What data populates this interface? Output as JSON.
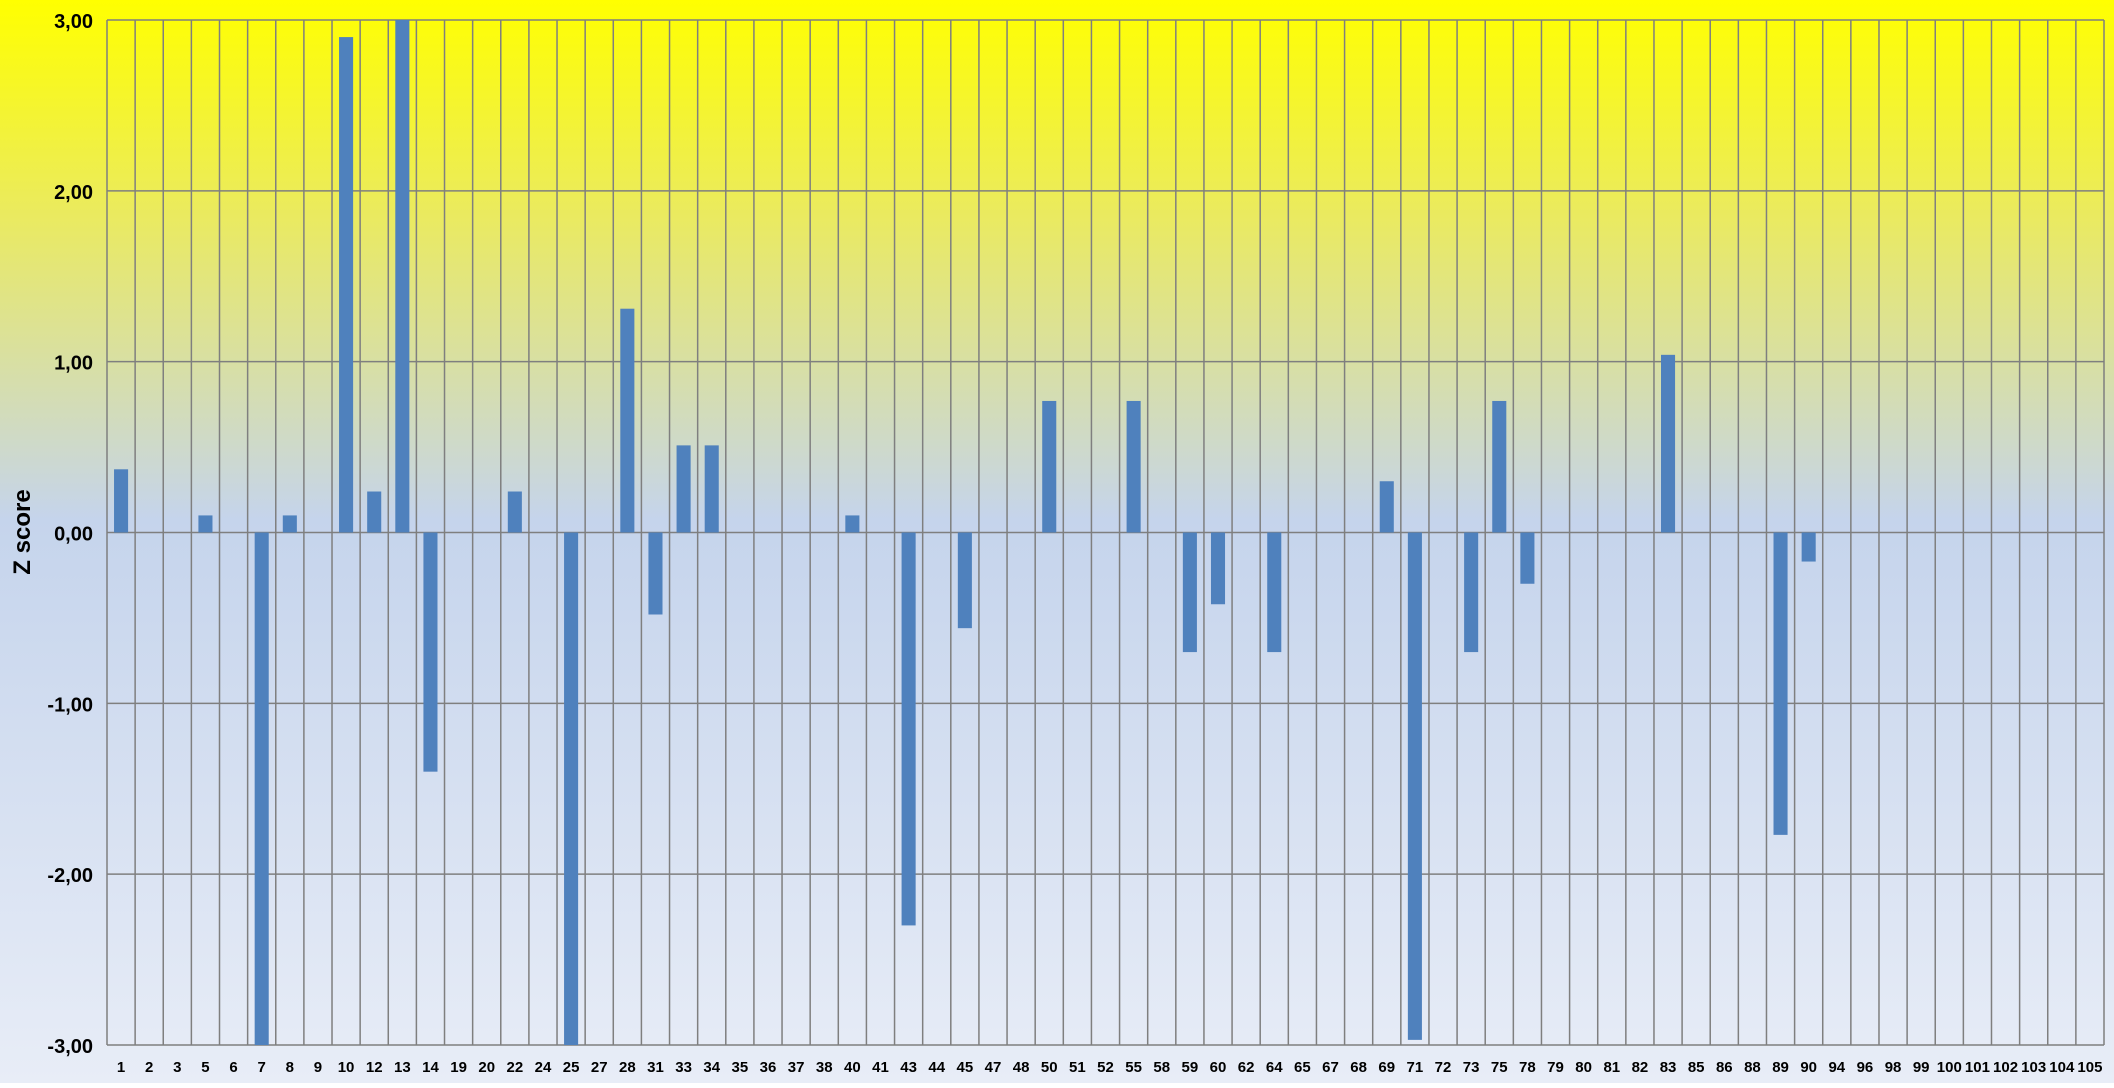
{
  "chart_data": {
    "type": "bar",
    "title": "",
    "xlabel": "",
    "ylabel": "Z score",
    "ylim": [
      -3,
      3
    ],
    "yticks": [
      3,
      2,
      1,
      0,
      -1,
      -2,
      -3
    ],
    "ytick_labels": [
      "3,00",
      "2,00",
      "1,00",
      "0,00",
      "-1,00",
      "-2,00",
      "-3,00"
    ],
    "grid": true,
    "legend": "none",
    "categories": [
      "1",
      "2",
      "3",
      "5",
      "6",
      "7",
      "8",
      "9",
      "10",
      "12",
      "13",
      "14",
      "19",
      "20",
      "22",
      "24",
      "25",
      "27",
      "28",
      "31",
      "33",
      "34",
      "35",
      "36",
      "37",
      "38",
      "40",
      "41",
      "43",
      "44",
      "45",
      "47",
      "48",
      "50",
      "51",
      "52",
      "55",
      "58",
      "59",
      "60",
      "62",
      "64",
      "65",
      "67",
      "68",
      "69",
      "71",
      "72",
      "73",
      "75",
      "78",
      "79",
      "80",
      "81",
      "82",
      "83",
      "85",
      "86",
      "88",
      "89",
      "90",
      "94",
      "96",
      "98",
      "99",
      "100",
      "101",
      "102",
      "103",
      "104",
      "105"
    ],
    "series": [
      {
        "values": [
          0.37,
          0,
          0,
          0.1,
          0,
          -3.0,
          0.1,
          0,
          2.9,
          0.24,
          3.0,
          -1.4,
          0,
          0,
          0.24,
          0,
          -3.0,
          0,
          1.31,
          -0.48,
          0.51,
          0.51,
          0,
          0,
          0,
          0,
          0.1,
          0,
          -2.3,
          0,
          -0.56,
          0,
          0,
          0.77,
          0,
          0,
          0.77,
          0,
          -0.7,
          -0.42,
          0,
          -0.7,
          0,
          0,
          0,
          0.3,
          -2.97,
          0,
          -0.7,
          0.77,
          -0.3,
          0,
          0,
          0,
          0,
          1.04,
          0,
          0,
          0,
          -1.77,
          -0.17,
          0,
          0,
          0,
          0,
          0,
          0,
          0,
          0,
          0,
          0
        ]
      }
    ],
    "colors": {
      "bar": "#4f81bd",
      "grid": "#7f7f7f",
      "background_top": "#ffff00",
      "background_mid": "#c5d4ec",
      "background_bottom": "#e8edf7"
    }
  }
}
